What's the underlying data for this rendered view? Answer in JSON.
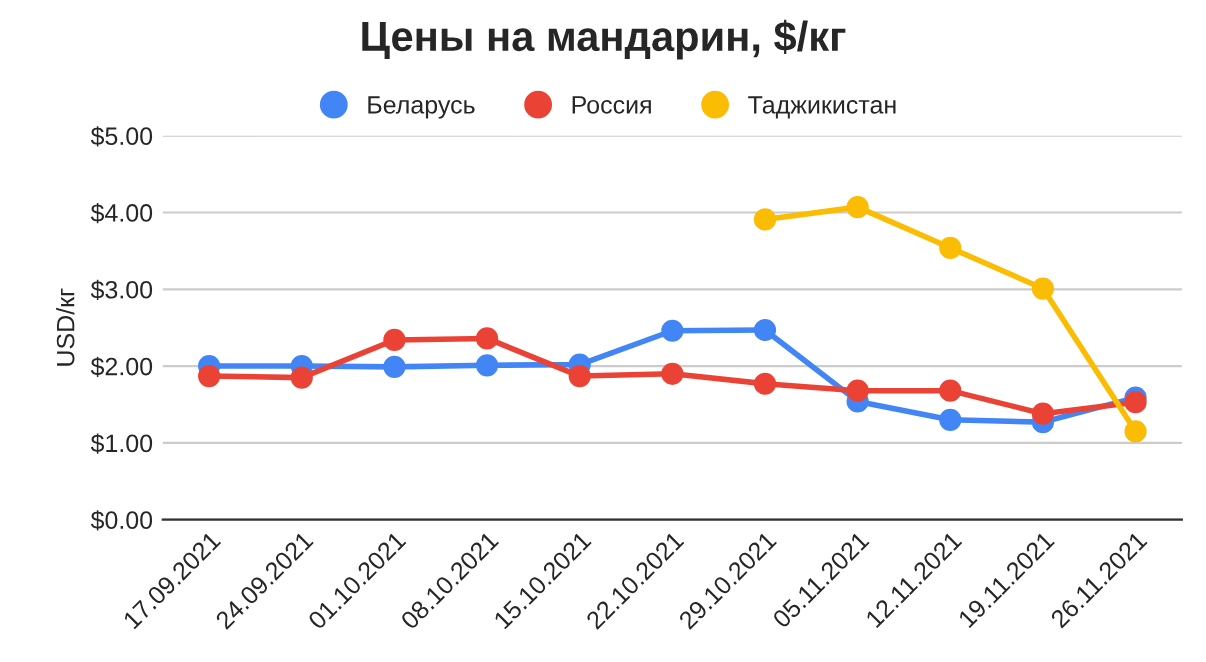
{
  "chart_data": {
    "type": "line",
    "title": "Цены на мандарин, $/кг",
    "ylabel": "USD/кг",
    "categories": [
      "17.09.2021",
      "24.09.2021",
      "01.10.2021",
      "08.10.2021",
      "15.10.2021",
      "22.10.2021",
      "29.10.2021",
      "05.11.2021",
      "12.11.2021",
      "19.11.2021",
      "26.11.2021"
    ],
    "series": [
      {
        "name": "Беларусь",
        "color": "#4285f4",
        "values": [
          2.0,
          2.0,
          1.99,
          2.01,
          2.02,
          2.46,
          2.47,
          1.54,
          1.3,
          1.27,
          1.59
        ]
      },
      {
        "name": "Россия",
        "color": "#ea4335",
        "values": [
          1.87,
          1.85,
          2.34,
          2.36,
          1.87,
          1.9,
          1.77,
          1.68,
          1.68,
          1.38,
          1.53
        ]
      },
      {
        "name": "Таджикистан",
        "color": "#fbbc04",
        "values": [
          null,
          null,
          null,
          null,
          null,
          null,
          3.91,
          4.07,
          3.54,
          3.01,
          1.15
        ]
      }
    ],
    "ylim": [
      0,
      5
    ],
    "yticks": [
      {
        "value": 0,
        "label": "$0.00"
      },
      {
        "value": 1,
        "label": "$1.00"
      },
      {
        "value": 2,
        "label": "$2.00"
      },
      {
        "value": 3,
        "label": "$3.00"
      },
      {
        "value": 4,
        "label": "$4.00"
      },
      {
        "value": 5,
        "label": "$5.00"
      }
    ],
    "grid": "y",
    "legend": "top",
    "marker": "circle"
  }
}
